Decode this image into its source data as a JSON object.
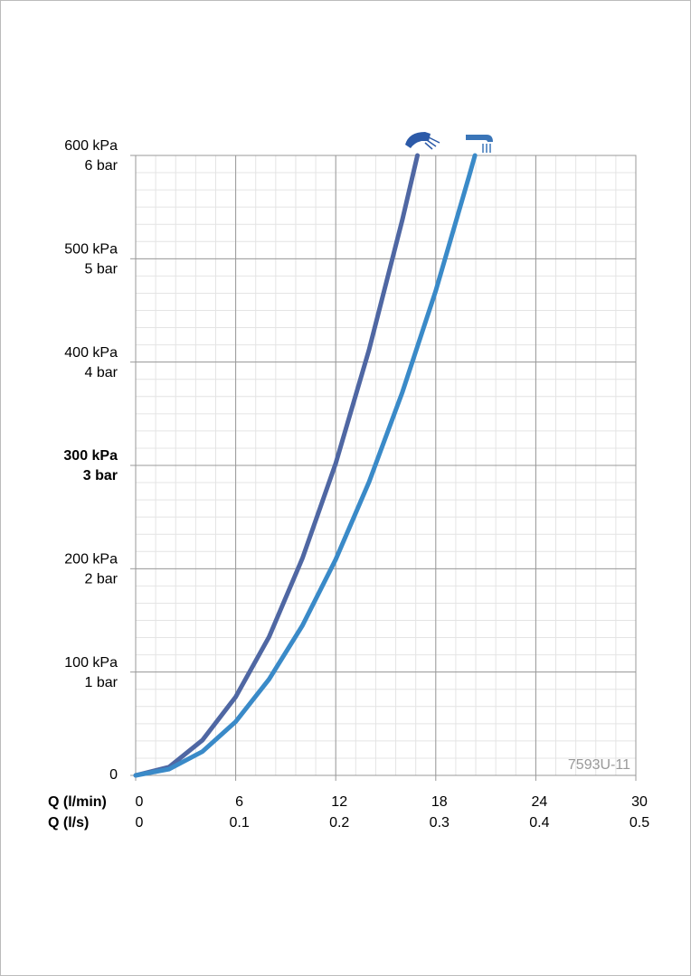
{
  "chart_data": {
    "type": "line",
    "xlabel": "Q (l/min)",
    "x2label": "Q (l/s)",
    "xlim": [
      0,
      30
    ],
    "xticks": [
      0,
      6,
      12,
      18,
      24,
      30
    ],
    "x2lim": [
      0,
      0.5
    ],
    "x2ticks": [
      0,
      0.1,
      0.2,
      0.3,
      0.4,
      0.5
    ],
    "ylim": [
      0,
      600
    ],
    "yticks": [
      0,
      {
        "value": 100,
        "label": "100 kPa"
      },
      {
        "value": 200,
        "label": "200 kPa"
      },
      {
        "value": 300,
        "label": "300 kPa"
      },
      {
        "value": 400,
        "label": "400 kPa"
      },
      {
        "value": 500,
        "label": "500 kPa"
      },
      {
        "value": 600,
        "label": "600 kPa"
      }
    ],
    "ytick_sublabels": [
      null,
      "1 bar",
      "2 bar",
      "3 bar",
      "4 bar",
      "5 bar",
      "6 bar"
    ],
    "bold_ytick_index": 3,
    "grid": true,
    "watermark": "7593U-11",
    "series": [
      {
        "color": "#4f67a3",
        "x": [
          0,
          2,
          4,
          6,
          8,
          10,
          12,
          14,
          16,
          16.9
        ],
        "values": [
          0,
          8,
          34,
          76,
          134,
          210,
          302,
          412,
          538,
          600
        ]
      },
      {
        "color": "#3a8ac8",
        "x": [
          0,
          2,
          4,
          6,
          8,
          10,
          12,
          14,
          16,
          18,
          20,
          20.35
        ],
        "values": [
          0,
          6,
          23,
          52,
          93,
          145,
          209,
          284,
          371,
          469,
          580,
          600
        ]
      }
    ]
  }
}
